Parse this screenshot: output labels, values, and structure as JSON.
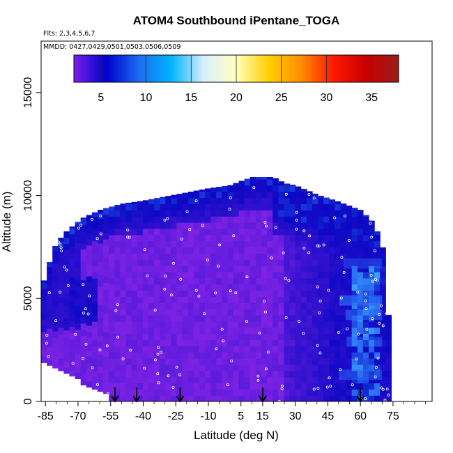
{
  "chart_data": {
    "type": "heatmap",
    "title": "ATOM4 Southbound iPentane_TOGA",
    "subtitle_flights": "Flts: 2,3,4,5,6,7",
    "subtitle_dates": "MMDD: 0427,0429,0501,0503,0506,0509",
    "xlabel": "Latitude (deg N)",
    "ylabel": "Altitude (m)",
    "xlim": [
      -87,
      93
    ],
    "ylim": [
      0,
      17500
    ],
    "xticks": [
      -85,
      -70,
      -55,
      -40,
      -25,
      -10,
      5,
      15,
      30,
      45,
      60,
      75
    ],
    "xtick_labels": [
      "-85",
      "-70",
      "-55",
      "-40",
      "-25",
      "-10",
      "5",
      "15",
      "30",
      "45",
      "60",
      "75"
    ],
    "yticks": [
      0,
      5000,
      10000,
      15000
    ],
    "ytick_labels": [
      "0",
      "5000",
      "10000",
      "15000"
    ],
    "colorbar": {
      "range": [
        2,
        38
      ],
      "ticks": [
        5,
        10,
        15,
        20,
        25,
        30,
        35
      ],
      "tick_labels": [
        "5",
        "10",
        "15",
        "20",
        "25",
        "30",
        "35"
      ],
      "colors": [
        "#7a1fe8",
        "#0000cc",
        "#1c6bf0",
        "#00b4ff",
        "#d8f0ff",
        "#ffffc0",
        "#ffd000",
        "#ff8c00",
        "#ff1800",
        "#c80000",
        "#9b1c1c"
      ]
    },
    "profile_arrows_lat": [
      -53,
      -43,
      -23,
      15,
      60
    ],
    "colors": {
      "low": "#7b22e4",
      "mid": "#0a08c4",
      "high": "#2a6cf2",
      "peak": "#3fb8ff"
    }
  }
}
